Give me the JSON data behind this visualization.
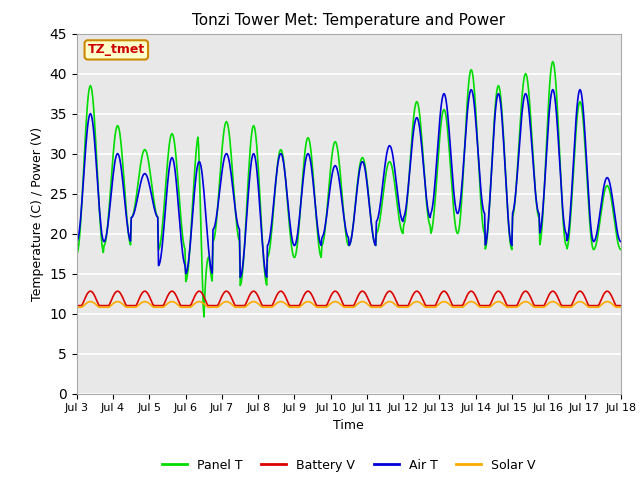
{
  "title": "Tonzi Tower Met: Temperature and Power",
  "xlabel": "Time",
  "ylabel": "Temperature (C) / Power (V)",
  "annotation": "TZ_tmet",
  "ylim": [
    0,
    45
  ],
  "yticks": [
    0,
    5,
    10,
    15,
    20,
    25,
    30,
    35,
    40,
    45
  ],
  "x_labels": [
    "Jul 3",
    "Jul 4",
    "Jul 5",
    "Jul 6",
    "Jul 7",
    "Jul 8",
    "Jul 9",
    "Jul 10",
    "Jul 11",
    "Jul 12",
    "Jul 13",
    "Jul 14",
    "Jul 15",
    "Jul 16",
    "Jul 17",
    "Jul 18"
  ],
  "legend_labels": [
    "Panel T",
    "Battery V",
    "Air T",
    "Solar V"
  ],
  "legend_colors": [
    "#00dd00",
    "#dd0000",
    "#0000dd",
    "#ffaa00"
  ],
  "background_color": "#e8e8e8",
  "panel_t_peaks": [
    38.5,
    33.5,
    30.5,
    32.5,
    32.5,
    34.0,
    33.5,
    30.5,
    32.0,
    31.5,
    29.5,
    29.0,
    36.5,
    35.5,
    40.5,
    38.5,
    40.0,
    41.5,
    36.5,
    26.0
  ],
  "panel_t_troughs": [
    17.5,
    18.5,
    22.0,
    18.0,
    14.0,
    19.0,
    13.5,
    17.0,
    17.0,
    18.5,
    18.5,
    20.0,
    21.0,
    20.0,
    20.0,
    18.0,
    22.0,
    18.5,
    18.0,
    18.0
  ],
  "air_t_peaks": [
    35.0,
    30.0,
    27.5,
    29.5,
    29.0,
    30.0,
    30.0,
    30.0,
    30.0,
    28.5,
    29.0,
    31.0,
    34.5,
    37.5,
    38.0,
    37.5,
    37.5,
    38.0,
    38.0,
    27.0
  ],
  "air_t_troughs": [
    19.0,
    19.0,
    22.0,
    16.0,
    15.0,
    20.5,
    14.5,
    18.5,
    18.5,
    19.5,
    18.5,
    21.5,
    22.0,
    22.5,
    22.5,
    18.5,
    22.5,
    20.0,
    19.0,
    19.0
  ],
  "n_days": 15,
  "pts_per_day": 48,
  "batt_base": 11.0,
  "batt_peak": 12.8,
  "solar_base": 10.8,
  "solar_peak": 11.5
}
